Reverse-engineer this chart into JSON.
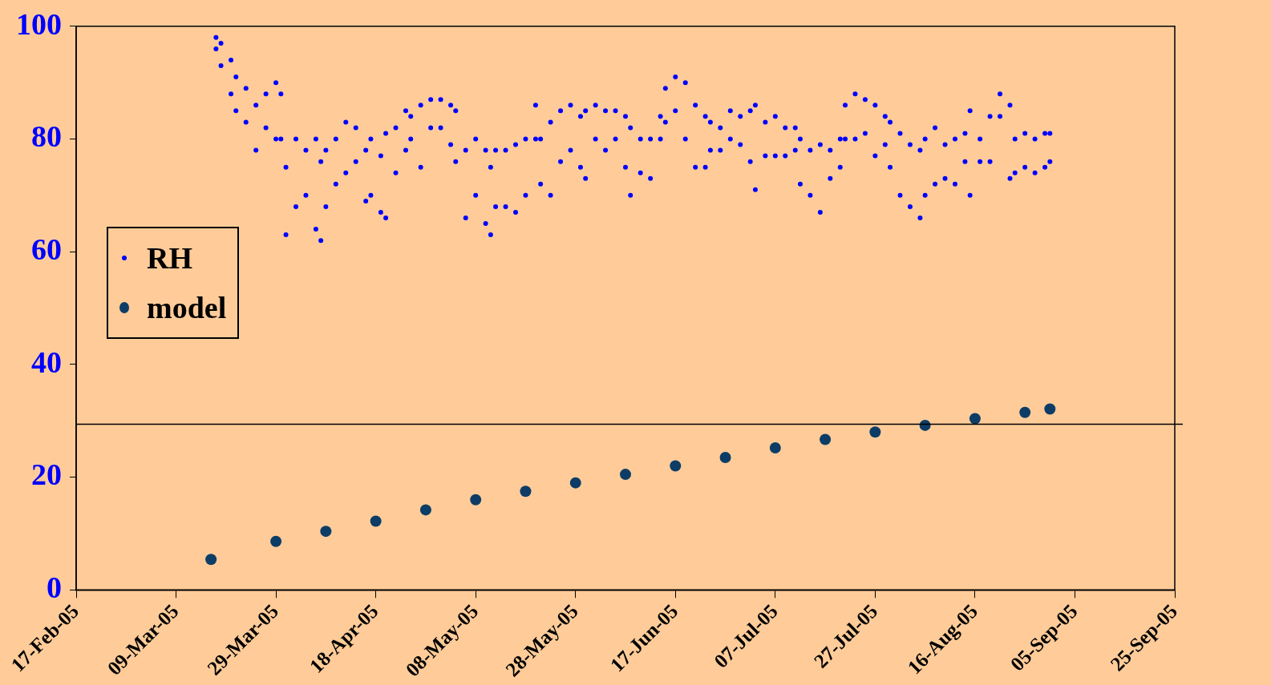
{
  "chart_data": {
    "type": "scatter",
    "legend": "left",
    "marker": "circle",
    "grid": false,
    "xlim": [
      "2005-02-17",
      "2005-09-25"
    ],
    "xticks": [
      {
        "value": "2005-02-17",
        "label": "17-Feb-05"
      },
      {
        "value": "2005-03-09",
        "label": "09-Mar-05"
      },
      {
        "value": "2005-03-29",
        "label": "29-Mar-05"
      },
      {
        "value": "2005-04-18",
        "label": "18-Apr-05"
      },
      {
        "value": "2005-05-08",
        "label": "08-May-05"
      },
      {
        "value": "2005-05-28",
        "label": "28-May-05"
      },
      {
        "value": "2005-06-17",
        "label": "17-Jun-05"
      },
      {
        "value": "2005-07-07",
        "label": "07-Jul-05"
      },
      {
        "value": "2005-07-27",
        "label": "27-Jul-05"
      },
      {
        "value": "2005-08-16",
        "label": "16-Aug-05"
      },
      {
        "value": "2005-09-05",
        "label": "05-Sep-05"
      },
      {
        "value": "2005-09-25",
        "label": "25-Sep-05"
      }
    ],
    "ylim": [
      0,
      100
    ],
    "yticks": [
      0,
      20,
      40,
      60,
      80,
      100
    ],
    "ref_lines": [
      {
        "axis": "y",
        "value": 29.4,
        "color": "#000000"
      }
    ],
    "series": [
      {
        "name": "RH",
        "color": "#0000ff",
        "x": [
          "2005-03-17",
          "2005-03-17",
          "2005-03-18",
          "2005-03-18",
          "2005-03-20",
          "2005-03-20",
          "2005-03-21",
          "2005-03-21",
          "2005-03-23",
          "2005-03-23",
          "2005-03-25",
          "2005-03-25",
          "2005-03-27",
          "2005-03-27",
          "2005-03-29",
          "2005-03-29",
          "2005-03-30",
          "2005-03-30",
          "2005-03-31",
          "2005-03-31",
          "2005-04-02",
          "2005-04-02",
          "2005-04-04",
          "2005-04-04",
          "2005-04-06",
          "2005-04-06",
          "2005-04-07",
          "2005-04-07",
          "2005-04-08",
          "2005-04-08",
          "2005-04-10",
          "2005-04-10",
          "2005-04-12",
          "2005-04-12",
          "2005-04-14",
          "2005-04-14",
          "2005-04-16",
          "2005-04-16",
          "2005-04-17",
          "2005-04-17",
          "2005-04-19",
          "2005-04-19",
          "2005-04-20",
          "2005-04-20",
          "2005-04-22",
          "2005-04-22",
          "2005-04-24",
          "2005-04-24",
          "2005-04-25",
          "2005-04-25",
          "2005-04-27",
          "2005-04-27",
          "2005-04-29",
          "2005-04-29",
          "2005-05-01",
          "2005-05-01",
          "2005-05-03",
          "2005-05-03",
          "2005-05-04",
          "2005-05-04",
          "2005-05-06",
          "2005-05-06",
          "2005-05-08",
          "2005-05-08",
          "2005-05-10",
          "2005-05-10",
          "2005-05-11",
          "2005-05-11",
          "2005-05-12",
          "2005-05-12",
          "2005-05-14",
          "2005-05-14",
          "2005-05-16",
          "2005-05-16",
          "2005-05-18",
          "2005-05-18",
          "2005-05-20",
          "2005-05-20",
          "2005-05-21",
          "2005-05-21",
          "2005-05-23",
          "2005-05-23",
          "2005-05-25",
          "2005-05-25",
          "2005-05-27",
          "2005-05-27",
          "2005-05-29",
          "2005-05-29",
          "2005-05-30",
          "2005-05-30",
          "2005-06-01",
          "2005-06-01",
          "2005-06-03",
          "2005-06-03",
          "2005-06-05",
          "2005-06-05",
          "2005-06-07",
          "2005-06-07",
          "2005-06-08",
          "2005-06-08",
          "2005-06-10",
          "2005-06-10",
          "2005-06-12",
          "2005-06-12",
          "2005-06-14",
          "2005-06-14",
          "2005-06-15",
          "2005-06-15",
          "2005-06-17",
          "2005-06-17",
          "2005-06-19",
          "2005-06-19",
          "2005-06-21",
          "2005-06-21",
          "2005-06-23",
          "2005-06-23",
          "2005-06-24",
          "2005-06-24",
          "2005-06-26",
          "2005-06-26",
          "2005-06-28",
          "2005-06-28",
          "2005-06-30",
          "2005-06-30",
          "2005-07-02",
          "2005-07-02",
          "2005-07-03",
          "2005-07-03",
          "2005-07-05",
          "2005-07-05",
          "2005-07-07",
          "2005-07-07",
          "2005-07-09",
          "2005-07-09",
          "2005-07-11",
          "2005-07-11",
          "2005-07-12",
          "2005-07-12",
          "2005-07-14",
          "2005-07-14",
          "2005-07-16",
          "2005-07-16",
          "2005-07-18",
          "2005-07-18",
          "2005-07-20",
          "2005-07-20",
          "2005-07-21",
          "2005-07-21",
          "2005-07-23",
          "2005-07-23",
          "2005-07-25",
          "2005-07-25",
          "2005-07-27",
          "2005-07-27",
          "2005-07-29",
          "2005-07-29",
          "2005-07-30",
          "2005-07-30",
          "2005-08-01",
          "2005-08-01",
          "2005-08-03",
          "2005-08-03",
          "2005-08-05",
          "2005-08-05",
          "2005-08-06",
          "2005-08-06",
          "2005-08-08",
          "2005-08-08",
          "2005-08-10",
          "2005-08-10",
          "2005-08-12",
          "2005-08-12",
          "2005-08-14",
          "2005-08-14",
          "2005-08-15",
          "2005-08-15",
          "2005-08-17",
          "2005-08-17",
          "2005-08-19",
          "2005-08-19",
          "2005-08-21",
          "2005-08-21",
          "2005-08-23",
          "2005-08-23",
          "2005-08-24",
          "2005-08-24",
          "2005-08-26",
          "2005-08-26",
          "2005-08-28",
          "2005-08-28",
          "2005-08-30",
          "2005-08-30",
          "2005-08-31",
          "2005-08-31"
        ],
        "values": [
          96,
          98,
          93,
          97,
          88,
          94,
          85,
          91,
          83,
          89,
          78,
          86,
          82,
          88,
          80,
          90,
          80,
          88,
          63,
          75,
          68,
          80,
          70,
          78,
          64,
          80,
          62,
          76,
          68,
          78,
          72,
          80,
          74,
          83,
          76,
          82,
          69,
          78,
          70,
          80,
          67,
          77,
          66,
          81,
          74,
          82,
          78,
          85,
          80,
          84,
          75,
          86,
          82,
          87,
          82,
          87,
          79,
          86,
          76,
          85,
          66,
          78,
          70,
          80,
          65,
          78,
          63,
          75,
          68,
          78,
          68,
          78,
          67,
          79,
          70,
          80,
          80,
          86,
          72,
          80,
          70,
          83,
          76,
          85,
          78,
          86,
          75,
          84,
          73,
          85,
          80,
          86,
          78,
          85,
          80,
          85,
          75,
          84,
          70,
          82,
          74,
          80,
          73,
          80,
          80,
          84,
          83,
          89,
          85,
          91,
          80,
          90,
          75,
          86,
          75,
          84,
          78,
          83,
          78,
          82,
          80,
          85,
          79,
          84,
          76,
          85,
          71,
          86,
          77,
          83,
          77,
          84,
          77,
          82,
          78,
          82,
          72,
          80,
          70,
          78,
          67,
          79,
          73,
          78,
          75,
          80,
          80,
          86,
          80,
          88,
          81,
          87,
          77,
          86,
          79,
          84,
          75,
          83,
          70,
          81,
          68,
          79,
          66,
          78,
          70,
          80,
          72,
          82,
          73,
          79,
          72,
          80,
          76,
          81,
          70,
          85,
          76,
          80,
          76,
          84,
          84,
          88,
          73,
          86,
          74,
          80,
          75,
          81,
          74,
          80,
          75,
          81,
          76,
          81
        ]
      },
      {
        "name": "model",
        "color": "#0d3d66",
        "x": [
          "2005-03-16",
          "2005-03-29",
          "2005-04-08",
          "2005-04-18",
          "2005-04-28",
          "2005-05-08",
          "2005-05-18",
          "2005-05-28",
          "2005-06-07",
          "2005-06-17",
          "2005-06-27",
          "2005-07-07",
          "2005-07-17",
          "2005-07-27",
          "2005-08-06",
          "2005-08-16",
          "2005-08-26",
          "2005-08-31"
        ],
        "values": [
          5.4,
          8.6,
          10.4,
          12.2,
          14.2,
          16.0,
          17.5,
          19.0,
          20.5,
          22.0,
          23.5,
          25.2,
          26.7,
          28.0,
          29.2,
          30.4,
          31.5,
          32.1
        ]
      }
    ]
  }
}
